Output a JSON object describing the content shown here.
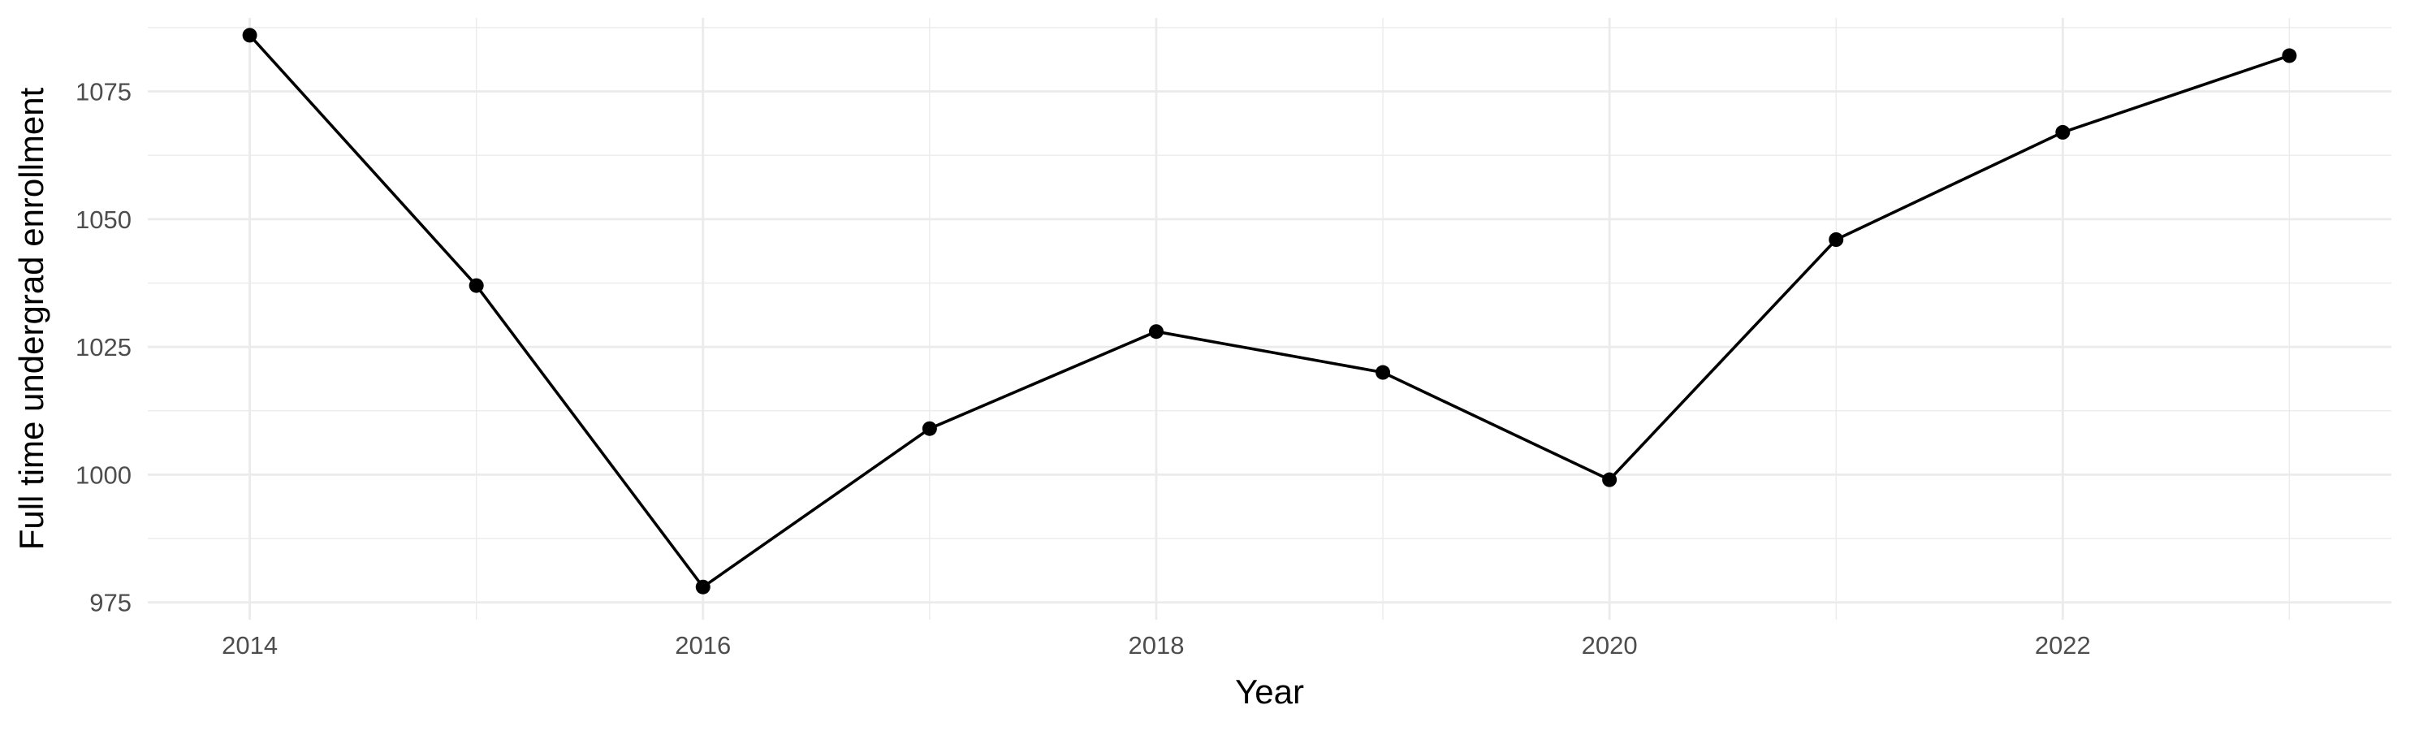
{
  "chart_data": {
    "type": "line",
    "title": "",
    "xlabel": "Year",
    "ylabel": "Full time undergrad enrollment",
    "x": [
      2014,
      2015,
      2016,
      2017,
      2018,
      2019,
      2020,
      2021,
      2022,
      2023
    ],
    "series": [
      {
        "values": [
          1086,
          1037,
          978,
          1009,
          1028,
          1020,
          999,
          1046,
          1067,
          1082
        ]
      }
    ],
    "xlim": [
      2013.55,
      2023.45
    ],
    "ylim": [
      971.6,
      1089.4
    ],
    "x_ticks": [
      2014,
      2016,
      2018,
      2020,
      2022
    ],
    "y_ticks": [
      975,
      1000,
      1025,
      1050,
      1075
    ],
    "grid": true,
    "line_color": "#000000",
    "point_color": "#000000",
    "grid_color": "#ebebeb"
  }
}
